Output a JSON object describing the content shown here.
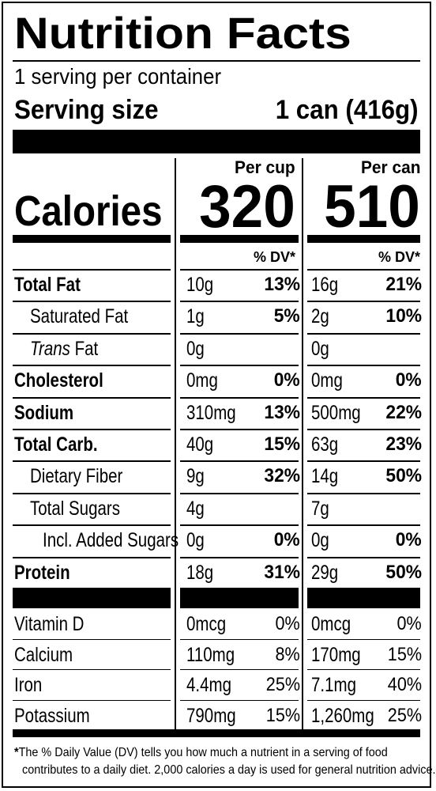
{
  "title": "Nutrition Facts",
  "servings_per_container": "1 serving per container",
  "serving_size": {
    "label": "Serving size",
    "value": "1 can (416g)"
  },
  "columns": {
    "per_cup": "Per cup",
    "per_can": "Per can"
  },
  "calories": {
    "label": "Calories",
    "per_cup": "320",
    "per_can": "510"
  },
  "dv_header": "% DV*",
  "nutrients": [
    {
      "name": "Total Fat",
      "cup_amt": "10g",
      "cup_dv": "13%",
      "can_amt": "16g",
      "can_dv": "21%"
    },
    {
      "name": "Saturated Fat",
      "cup_amt": "1g",
      "cup_dv": "5%",
      "can_amt": "2g",
      "can_dv": "10%"
    },
    {
      "name_italic": "Trans",
      "name": " Fat",
      "cup_amt": "0g",
      "cup_dv": "",
      "can_amt": "0g",
      "can_dv": ""
    },
    {
      "name": "Cholesterol",
      "cup_amt": "0mg",
      "cup_dv": "0%",
      "can_amt": "0mg",
      "can_dv": "0%"
    },
    {
      "name": "Sodium",
      "cup_amt": "310mg",
      "cup_dv": "13%",
      "can_amt": "500mg",
      "can_dv": "22%"
    },
    {
      "name": "Total Carb.",
      "cup_amt": "40g",
      "cup_dv": "15%",
      "can_amt": "63g",
      "can_dv": "23%"
    },
    {
      "name": "Dietary Fiber",
      "cup_amt": "9g",
      "cup_dv": "32%",
      "can_amt": "14g",
      "can_dv": "50%"
    },
    {
      "name": "Total Sugars",
      "cup_amt": "4g",
      "cup_dv": "",
      "can_amt": "7g",
      "can_dv": ""
    },
    {
      "name": "Incl. Added Sugars",
      "cup_amt": "0g",
      "cup_dv": "0%",
      "can_amt": "0g",
      "can_dv": "0%"
    },
    {
      "name": "Protein",
      "cup_amt": "18g",
      "cup_dv": "31%",
      "can_amt": "29g",
      "can_dv": "50%"
    }
  ],
  "vitamins": [
    {
      "name": "Vitamin D",
      "cup_amt": "0mcg",
      "cup_dv": "0%",
      "can_amt": "0mcg",
      "can_dv": "0%"
    },
    {
      "name": "Calcium",
      "cup_amt": "110mg",
      "cup_dv": "8%",
      "can_amt": "170mg",
      "can_dv": "15%"
    },
    {
      "name": "Iron",
      "cup_amt": "4.4mg",
      "cup_dv": "25%",
      "can_amt": "7.1mg",
      "can_dv": "40%"
    },
    {
      "name": "Potassium",
      "cup_amt": "790mg",
      "cup_dv": "15%",
      "can_amt": "1,260mg",
      "can_dv": "25%"
    }
  ],
  "footnote": {
    "asterisk": "*",
    "line1": "The % Daily Value (DV) tells you how much a nutrient in a serving of food",
    "line2": "contributes to a daily diet. 2,000 calories a day is used for general nutrition advice."
  }
}
